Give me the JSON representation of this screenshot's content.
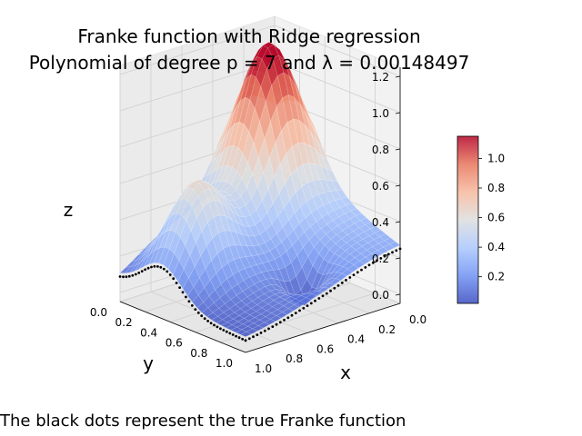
{
  "chart_data": {
    "type": "surface3d",
    "title_line1": "Franke function with Ridge regression",
    "title_line2": "Polynomial of degree p = 7 and λ = 0.00148497",
    "caption": "The black dots represent the true Franke function",
    "xlabel": "x",
    "ylabel": "y",
    "zlabel": "z",
    "x_ticks": [
      "0.0",
      "0.2",
      "0.4",
      "0.6",
      "0.8",
      "1.0"
    ],
    "y_ticks": [
      "0.0",
      "0.2",
      "0.4",
      "0.6",
      "0.8",
      "1.0"
    ],
    "z_ticks": [
      "0.0",
      "0.2",
      "0.4",
      "0.6",
      "0.8",
      "1.0",
      "1.2"
    ],
    "xlim": [
      0,
      1
    ],
    "ylim": [
      0,
      1
    ],
    "zlim": [
      -0.05,
      1.25
    ],
    "colormap": "coolwarm",
    "colorbar": {
      "ticks": [
        "0.2",
        "0.4",
        "0.6",
        "0.8",
        "1.0"
      ],
      "range": [
        0.02,
        1.15
      ],
      "colors": [
        "#3b4cc0",
        "#6f92f3",
        "#aac7fd",
        "#dcdddd",
        "#f7b89c",
        "#e7745b",
        "#b40426"
      ]
    },
    "true_points_color": "#000000",
    "grid": true
  }
}
